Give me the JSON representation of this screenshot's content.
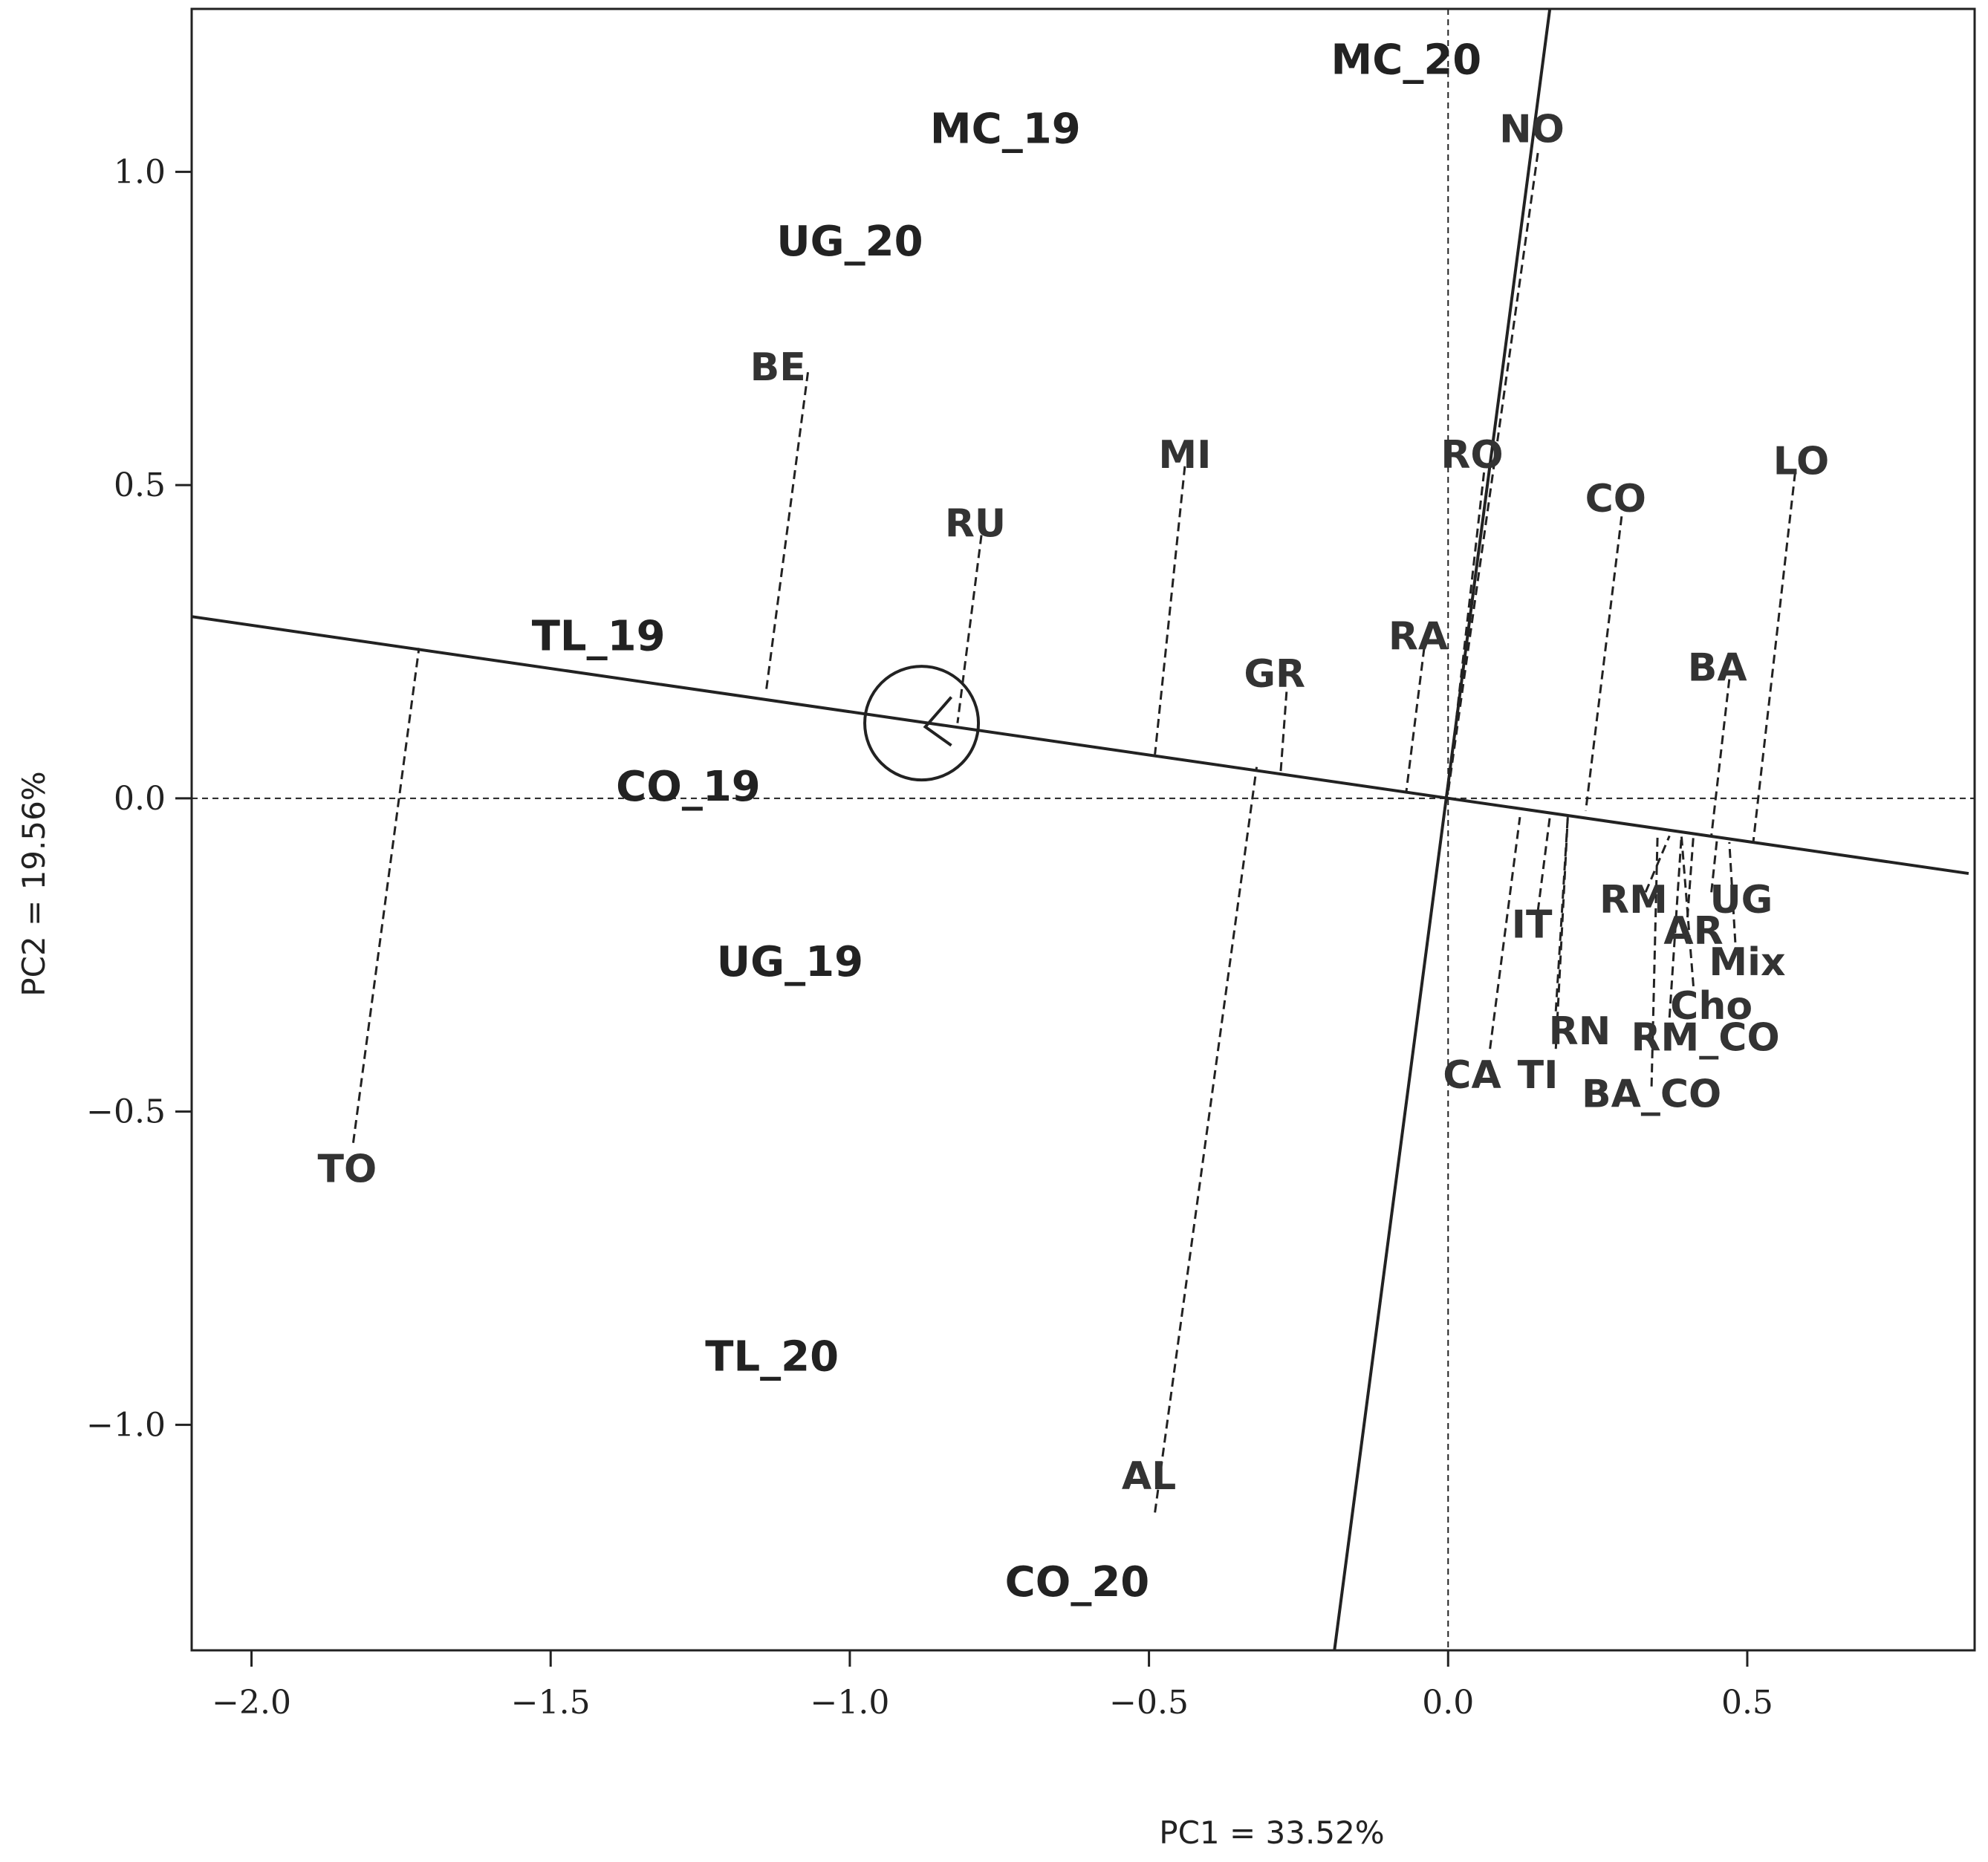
{
  "chart_data": {
    "type": "scatter",
    "subtype": "GGE biplot (which-won-where / mean vs stability)",
    "xlabel": "PC1 = 33.52%",
    "ylabel": "PC2 = 19.56%",
    "xlim": [
      -2.1,
      0.88
    ],
    "ylim": [
      -1.36,
      1.26
    ],
    "x_ticks": [
      -2.0,
      -1.5,
      -1.0,
      -0.5,
      0.0,
      0.5
    ],
    "x_tick_labels": [
      "−2.0",
      "−1.5",
      "−1.0",
      "−0.5",
      "0.0",
      "0.5"
    ],
    "y_ticks": [
      -1.0,
      -0.5,
      0.0,
      0.5,
      1.0
    ],
    "y_tick_labels": [
      "−1.0",
      "−0.5",
      "0.0",
      "0.5",
      "1.0"
    ],
    "grid": false,
    "reference_lines": {
      "x": 0,
      "y": 0,
      "style": "dashed"
    },
    "environments": [
      {
        "label": "MC_20",
        "x": -0.07,
        "y": 1.18
      },
      {
        "label": "MC_19",
        "x": -0.74,
        "y": 1.07
      },
      {
        "label": "UG_20",
        "x": -1.0,
        "y": 0.89
      },
      {
        "label": "TL_19",
        "x": -1.42,
        "y": 0.26
      },
      {
        "label": "CO_19",
        "x": -1.27,
        "y": 0.02
      },
      {
        "label": "UG_19",
        "x": -1.1,
        "y": -0.26
      },
      {
        "label": "TL_20",
        "x": -1.13,
        "y": -0.89
      },
      {
        "label": "CO_20",
        "x": -0.62,
        "y": -1.25
      }
    ],
    "genotypes": [
      {
        "label": "NO",
        "x": 0.14,
        "y": 1.07,
        "proj_x": 0.15,
        "proj_y": 1.03,
        "line_end_x": 0.0,
        "line_end_y": 0.01
      },
      {
        "label": "BE",
        "x": -1.12,
        "y": 0.69,
        "proj_x": -1.07,
        "proj_y": 0.68,
        "line_end_x": -1.14,
        "line_end_y": 0.17
      },
      {
        "label": "MI",
        "x": -0.44,
        "y": 0.55,
        "proj_x": -0.44,
        "proj_y": 0.53,
        "line_end_x": -0.49,
        "line_end_y": 0.07
      },
      {
        "label": "RU",
        "x": -0.79,
        "y": 0.44,
        "proj_x": -0.78,
        "proj_y": 0.42,
        "line_end_x": -0.82,
        "line_end_y": 0.12
      },
      {
        "label": "RO",
        "x": 0.04,
        "y": 0.55,
        "proj_x": 0.06,
        "proj_y": 0.52,
        "line_end_x": 0.0,
        "line_end_y": 0.01
      },
      {
        "label": "CO",
        "x": 0.28,
        "y": 0.48,
        "proj_x": 0.29,
        "proj_y": 0.45,
        "line_end_x": 0.23,
        "line_end_y": -0.02
      },
      {
        "label": "LO",
        "x": 0.59,
        "y": 0.54,
        "proj_x": 0.58,
        "proj_y": 0.52,
        "line_end_x": 0.51,
        "line_end_y": -0.07
      },
      {
        "label": "RA",
        "x": -0.05,
        "y": 0.26,
        "proj_x": -0.04,
        "proj_y": 0.24,
        "line_end_x": -0.07,
        "line_end_y": 0.01
      },
      {
        "label": "GR",
        "x": -0.29,
        "y": 0.2,
        "proj_x": -0.27,
        "proj_y": 0.17,
        "line_end_x": -0.28,
        "line_end_y": 0.04
      },
      {
        "label": "BA",
        "x": 0.45,
        "y": 0.21,
        "proj_x": 0.47,
        "proj_y": 0.19,
        "line_end_x": 0.44,
        "line_end_y": -0.06
      },
      {
        "label": "TO",
        "x": -1.84,
        "y": -0.59,
        "proj_x": -1.83,
        "proj_y": -0.55,
        "line_end_x": -1.72,
        "line_end_y": 0.24
      },
      {
        "label": "AL",
        "x": -0.5,
        "y": -1.08,
        "proj_x": -0.49,
        "proj_y": -1.14,
        "line_end_x": -0.32,
        "line_end_y": 0.05
      },
      {
        "label": "IT",
        "x": 0.14,
        "y": -0.2,
        "proj_x": 0.15,
        "proj_y": -0.18,
        "line_end_x": 0.17,
        "line_end_y": -0.03
      },
      {
        "label": "RM",
        "x": 0.31,
        "y": -0.16,
        "proj_x": 0.33,
        "proj_y": -0.15,
        "line_end_x": 0.37,
        "line_end_y": -0.06
      },
      {
        "label": "UG",
        "x": 0.49,
        "y": -0.16,
        "proj_x": 0.44,
        "proj_y": -0.15,
        "line_end_x": 0.45,
        "line_end_y": -0.06
      },
      {
        "label": "AR",
        "x": 0.41,
        "y": -0.21,
        "proj_x": 0.4,
        "proj_y": -0.19,
        "line_end_x": 0.41,
        "line_end_y": -0.06
      },
      {
        "label": "Mix",
        "x": 0.5,
        "y": -0.26,
        "proj_x": 0.48,
        "proj_y": -0.23,
        "line_end_x": 0.47,
        "line_end_y": -0.07
      },
      {
        "label": "Cho",
        "x": 0.44,
        "y": -0.33,
        "proj_x": 0.41,
        "proj_y": -0.3,
        "line_end_x": 0.39,
        "line_end_y": -0.06
      },
      {
        "label": "RN",
        "x": 0.22,
        "y": -0.37,
        "proj_x": 0.18,
        "proj_y": -0.34,
        "line_end_x": 0.2,
        "line_end_y": -0.03
      },
      {
        "label": "RM_CO",
        "x": 0.43,
        "y": -0.38,
        "proj_x": 0.37,
        "proj_y": -0.35,
        "line_end_x": 0.39,
        "line_end_y": -0.06
      },
      {
        "label": "CA",
        "x": 0.04,
        "y": -0.44,
        "proj_x": 0.07,
        "proj_y": -0.4,
        "line_end_x": 0.12,
        "line_end_y": -0.03
      },
      {
        "label": "TI",
        "x": 0.15,
        "y": -0.44,
        "proj_x": 0.18,
        "proj_y": -0.4,
        "line_end_x": 0.2,
        "line_end_y": -0.03
      },
      {
        "label": "BA_CO",
        "x": 0.34,
        "y": -0.47,
        "proj_x": 0.34,
        "proj_y": -0.46,
        "line_end_x": 0.35,
        "line_end_y": -0.06
      }
    ],
    "aec_abscissa": {
      "from": [
        -2.1,
        0.29
      ],
      "to": [
        0.87,
        -0.12
      ]
    },
    "aec_ordinate": {
      "from": [
        -0.19,
        -1.36
      ],
      "to": [
        0.17,
        1.26
      ]
    },
    "arrow_circle": {
      "cx": -0.88,
      "cy": 0.12,
      "r": 0.095
    }
  }
}
